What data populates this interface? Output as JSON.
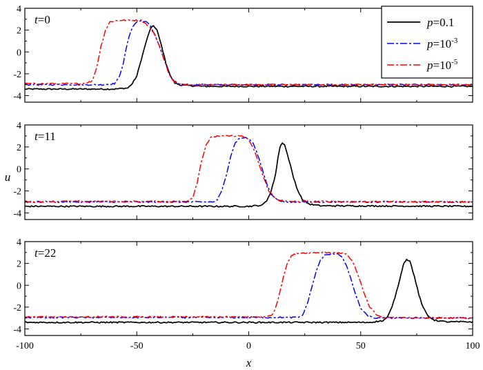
{
  "chart_data": {
    "type": "line",
    "xlabel": "x",
    "ylabel": "u",
    "xlim": [
      -100,
      100
    ],
    "ylim": [
      -4.6,
      4
    ],
    "x_ticks": [
      -100,
      -50,
      0,
      50,
      100
    ],
    "y_ticks": [
      -4,
      -2,
      0,
      2,
      4
    ],
    "legend": {
      "placement": "top-right",
      "entries": [
        {
          "var": "p",
          "base": "=0.1",
          "exp": ""
        },
        {
          "var": "p",
          "base": "=10",
          "exp": "-3"
        },
        {
          "var": "p",
          "base": "=10",
          "exp": "-5"
        }
      ]
    },
    "series_styles": [
      {
        "color": "#000000",
        "dash": "solid"
      },
      {
        "color": "#0000ff",
        "dash": "dashdot"
      },
      {
        "color": "#ff0000",
        "dash": "dashdot"
      }
    ],
    "panels": [
      {
        "label_var": "t",
        "label_value": "=0",
        "series": [
          {
            "points": [
              [
                -100,
                -3.4
              ],
              [
                -60,
                -3.4
              ],
              [
                -54,
                -3.3
              ],
              [
                -52,
                -2.9
              ],
              [
                -50,
                -2.2
              ],
              [
                -48,
                -0.7
              ],
              [
                -46,
                0.8
              ],
              [
                -44,
                2.1
              ],
              [
                -42.5,
                2.4
              ],
              [
                -41,
                2.0
              ],
              [
                -39,
                0.6
              ],
              [
                -37,
                -1.0
              ],
              [
                -35,
                -2.2
              ],
              [
                -33,
                -2.85
              ],
              [
                -30,
                -3.05
              ],
              [
                -25,
                -3.1
              ],
              [
                -20,
                -3.15
              ],
              [
                100,
                -3.15
              ]
            ]
          },
          {
            "points": [
              [
                -100,
                -3.0
              ],
              [
                -65,
                -3.0
              ],
              [
                -60,
                -2.9
              ],
              [
                -58,
                -2.4
              ],
              [
                -56,
                -1.0
              ],
              [
                -54,
                1.0
              ],
              [
                -52,
                2.3
              ],
              [
                -50,
                2.75
              ],
              [
                -48,
                2.85
              ],
              [
                -46,
                2.8
              ],
              [
                -44,
                2.4
              ],
              [
                -42,
                1.6
              ],
              [
                -40,
                0.6
              ],
              [
                -38,
                -0.6
              ],
              [
                -36,
                -1.8
              ],
              [
                -34,
                -2.6
              ],
              [
                -31,
                -2.95
              ],
              [
                -25,
                -3.0
              ],
              [
                100,
                -3.0
              ]
            ]
          },
          {
            "points": [
              [
                -100,
                -2.9
              ],
              [
                -75,
                -2.9
              ],
              [
                -70,
                -2.7
              ],
              [
                -68,
                -1.5
              ],
              [
                -66,
                0.5
              ],
              [
                -64,
                2.0
              ],
              [
                -62,
                2.75
              ],
              [
                -58,
                2.9
              ],
              [
                -48,
                2.9
              ],
              [
                -46,
                2.6
              ],
              [
                -44,
                2.2
              ],
              [
                -42,
                1.6
              ],
              [
                -40,
                0.6
              ],
              [
                -38,
                -0.6
              ],
              [
                -36,
                -1.8
              ],
              [
                -34,
                -2.6
              ],
              [
                -31,
                -2.95
              ],
              [
                -25,
                -3.0
              ],
              [
                100,
                -3.0
              ]
            ]
          }
        ]
      },
      {
        "label_var": "t",
        "label_value": "=11",
        "series": [
          {
            "points": [
              [
                -100,
                -3.4
              ],
              [
                0,
                -3.4
              ],
              [
                6,
                -3.3
              ],
              [
                8,
                -2.9
              ],
              [
                10,
                -2.0
              ],
              [
                12,
                -0.5
              ],
              [
                13,
                1.0
              ],
              [
                14,
                2.0
              ],
              [
                15,
                2.4
              ],
              [
                16,
                2.2
              ],
              [
                18,
                0.8
              ],
              [
                20,
                -0.8
              ],
              [
                22,
                -2.0
              ],
              [
                24,
                -2.8
              ],
              [
                27,
                -3.2
              ],
              [
                32,
                -3.35
              ],
              [
                100,
                -3.4
              ]
            ]
          },
          {
            "points": [
              [
                -100,
                -3.0
              ],
              [
                -16,
                -3.0
              ],
              [
                -14,
                -2.8
              ],
              [
                -12,
                -2.0
              ],
              [
                -10,
                -0.5
              ],
              [
                -8,
                1.2
              ],
              [
                -6,
                2.4
              ],
              [
                -4,
                2.8
              ],
              [
                -2,
                2.85
              ],
              [
                0,
                2.75
              ],
              [
                2,
                2.3
              ],
              [
                4,
                1.3
              ],
              [
                6,
                0.0
              ],
              [
                8,
                -1.3
              ],
              [
                10,
                -2.3
              ],
              [
                13,
                -2.9
              ],
              [
                17,
                -3.0
              ],
              [
                100,
                -3.0
              ]
            ]
          },
          {
            "points": [
              [
                -100,
                -2.95
              ],
              [
                -28,
                -2.95
              ],
              [
                -25,
                -2.6
              ],
              [
                -23,
                -1.2
              ],
              [
                -21,
                0.8
              ],
              [
                -19,
                2.2
              ],
              [
                -17,
                2.85
              ],
              [
                -14,
                3.0
              ],
              [
                -3,
                3.0
              ],
              [
                -1,
                2.8
              ],
              [
                1,
                2.3
              ],
              [
                3,
                1.4
              ],
              [
                5,
                0.2
              ],
              [
                7,
                -1.0
              ],
              [
                9,
                -2.0
              ],
              [
                12,
                -2.7
              ],
              [
                16,
                -2.95
              ],
              [
                100,
                -3.0
              ]
            ]
          }
        ]
      },
      {
        "label_var": "t",
        "label_value": "=22",
        "series": [
          {
            "points": [
              [
                -100,
                -3.4
              ],
              [
                54,
                -3.4
              ],
              [
                60,
                -3.25
              ],
              [
                62,
                -2.9
              ],
              [
                64,
                -2.0
              ],
              [
                66,
                -0.6
              ],
              [
                68,
                1.0
              ],
              [
                69,
                1.9
              ],
              [
                70.5,
                2.4
              ],
              [
                72,
                2.2
              ],
              [
                74,
                0.8
              ],
              [
                76,
                -0.9
              ],
              [
                78,
                -2.1
              ],
              [
                80,
                -2.8
              ],
              [
                83,
                -3.2
              ],
              [
                88,
                -3.35
              ],
              [
                100,
                -3.35
              ]
            ]
          },
          {
            "points": [
              [
                -100,
                -2.95
              ],
              [
                22,
                -2.95
              ],
              [
                24,
                -2.75
              ],
              [
                26,
                -1.8
              ],
              [
                28,
                -0.3
              ],
              [
                30,
                1.2
              ],
              [
                32,
                2.3
              ],
              [
                34,
                2.75
              ],
              [
                38,
                2.9
              ],
              [
                40,
                2.9
              ],
              [
                42,
                2.5
              ],
              [
                44,
                1.6
              ],
              [
                46,
                0.3
              ],
              [
                48,
                -1.0
              ],
              [
                50,
                -2.1
              ],
              [
                53,
                -2.8
              ],
              [
                56,
                -3.0
              ],
              [
                100,
                -3.0
              ]
            ]
          },
          {
            "points": [
              [
                -100,
                -2.9
              ],
              [
                8,
                -2.9
              ],
              [
                11,
                -2.6
              ],
              [
                13,
                -1.4
              ],
              [
                15,
                0.4
              ],
              [
                17,
                1.9
              ],
              [
                19,
                2.7
              ],
              [
                22,
                2.95
              ],
              [
                30,
                3.0
              ],
              [
                40,
                3.0
              ],
              [
                44,
                2.8
              ],
              [
                46,
                2.3
              ],
              [
                48,
                1.4
              ],
              [
                50,
                0.2
              ],
              [
                52,
                -1.0
              ],
              [
                54,
                -2.0
              ],
              [
                57,
                -2.7
              ],
              [
                60,
                -2.95
              ],
              [
                100,
                -3.0
              ]
            ]
          }
        ]
      }
    ]
  }
}
